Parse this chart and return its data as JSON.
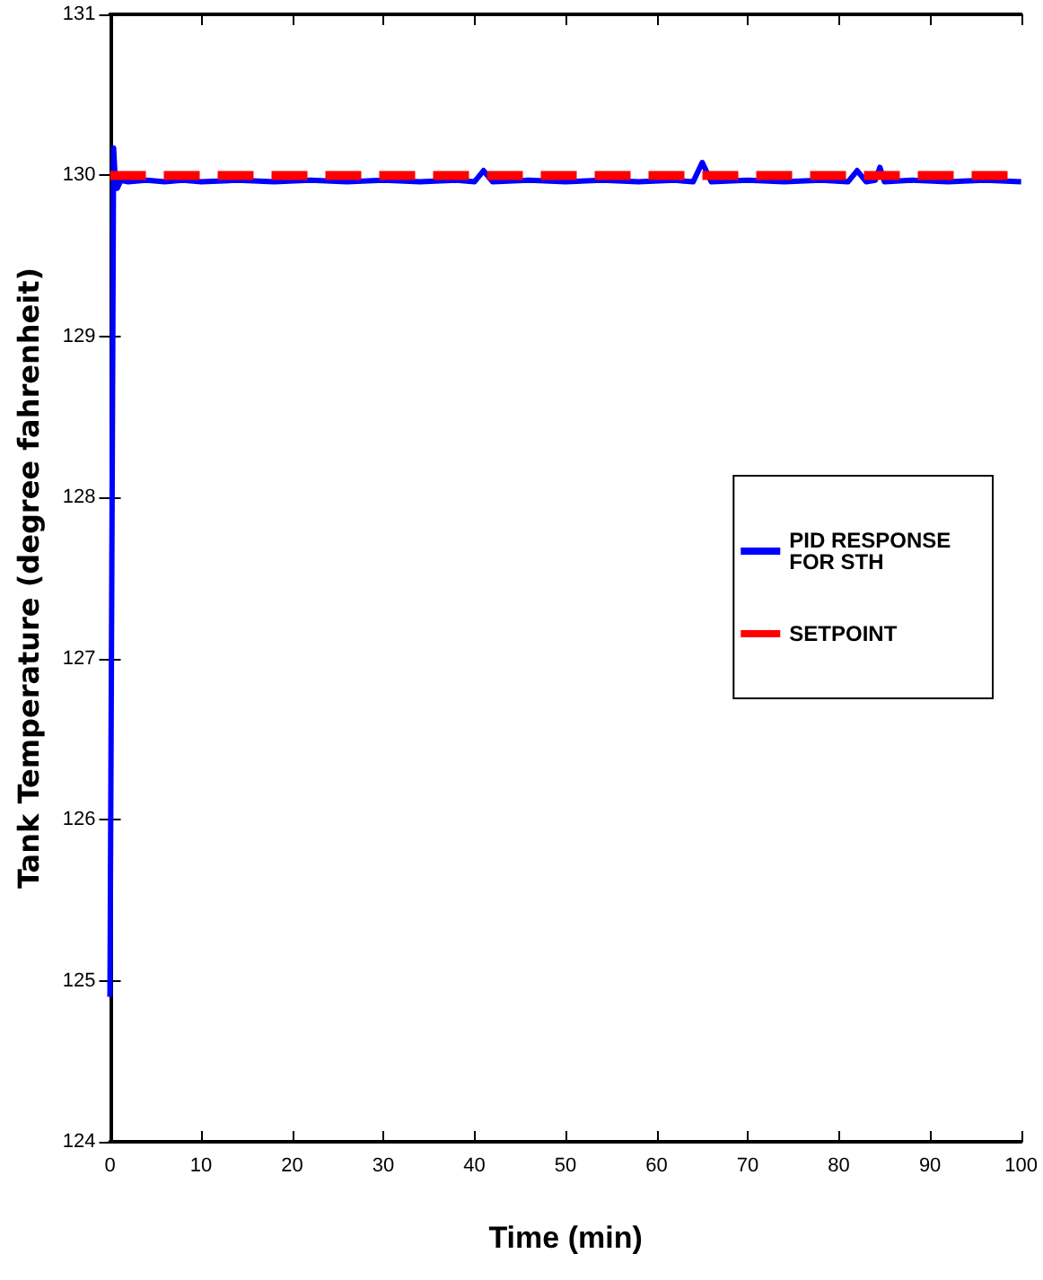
{
  "chart_data": {
    "type": "line",
    "xlabel": "Time (min)",
    "ylabel": "Tank Temperature (degree fahrenheit)",
    "xlim": [
      0,
      100
    ],
    "xticks": [
      0,
      10,
      20,
      30,
      40,
      50,
      60,
      70,
      80,
      90,
      100
    ],
    "ylim": [
      124,
      131
    ],
    "yticks": [
      124,
      125,
      126,
      127,
      128,
      129,
      130,
      131
    ],
    "grid": false,
    "legend": "right",
    "marker": "none",
    "series": [
      {
        "name": "PID RESPONSE FOR STH",
        "color": "#0000ff",
        "line_style": "solid",
        "x": [
          0,
          0.2,
          0.4,
          0.6,
          0.8,
          1.2,
          2,
          4,
          6,
          8,
          10,
          14,
          18,
          22,
          26,
          30,
          34,
          38,
          40,
          41,
          42,
          46,
          50,
          54,
          58,
          62,
          64,
          65,
          66,
          70,
          74,
          78,
          81,
          82,
          83,
          84,
          84.5,
          85,
          88,
          92,
          96,
          100
        ],
        "values": [
          124.9,
          127.5,
          130.17,
          129.95,
          129.92,
          129.97,
          129.96,
          129.97,
          129.96,
          129.97,
          129.96,
          129.97,
          129.96,
          129.97,
          129.96,
          129.97,
          129.96,
          129.97,
          129.96,
          130.03,
          129.96,
          129.97,
          129.96,
          129.97,
          129.96,
          129.97,
          129.96,
          130.08,
          129.96,
          129.97,
          129.96,
          129.97,
          129.96,
          130.03,
          129.96,
          129.97,
          130.05,
          129.96,
          129.97,
          129.96,
          129.97,
          129.96
        ]
      },
      {
        "name": "SETPOINT",
        "color": "#ff0000",
        "line_style": "dashed",
        "x": [
          0,
          100
        ],
        "values": [
          130,
          130
        ]
      }
    ]
  }
}
